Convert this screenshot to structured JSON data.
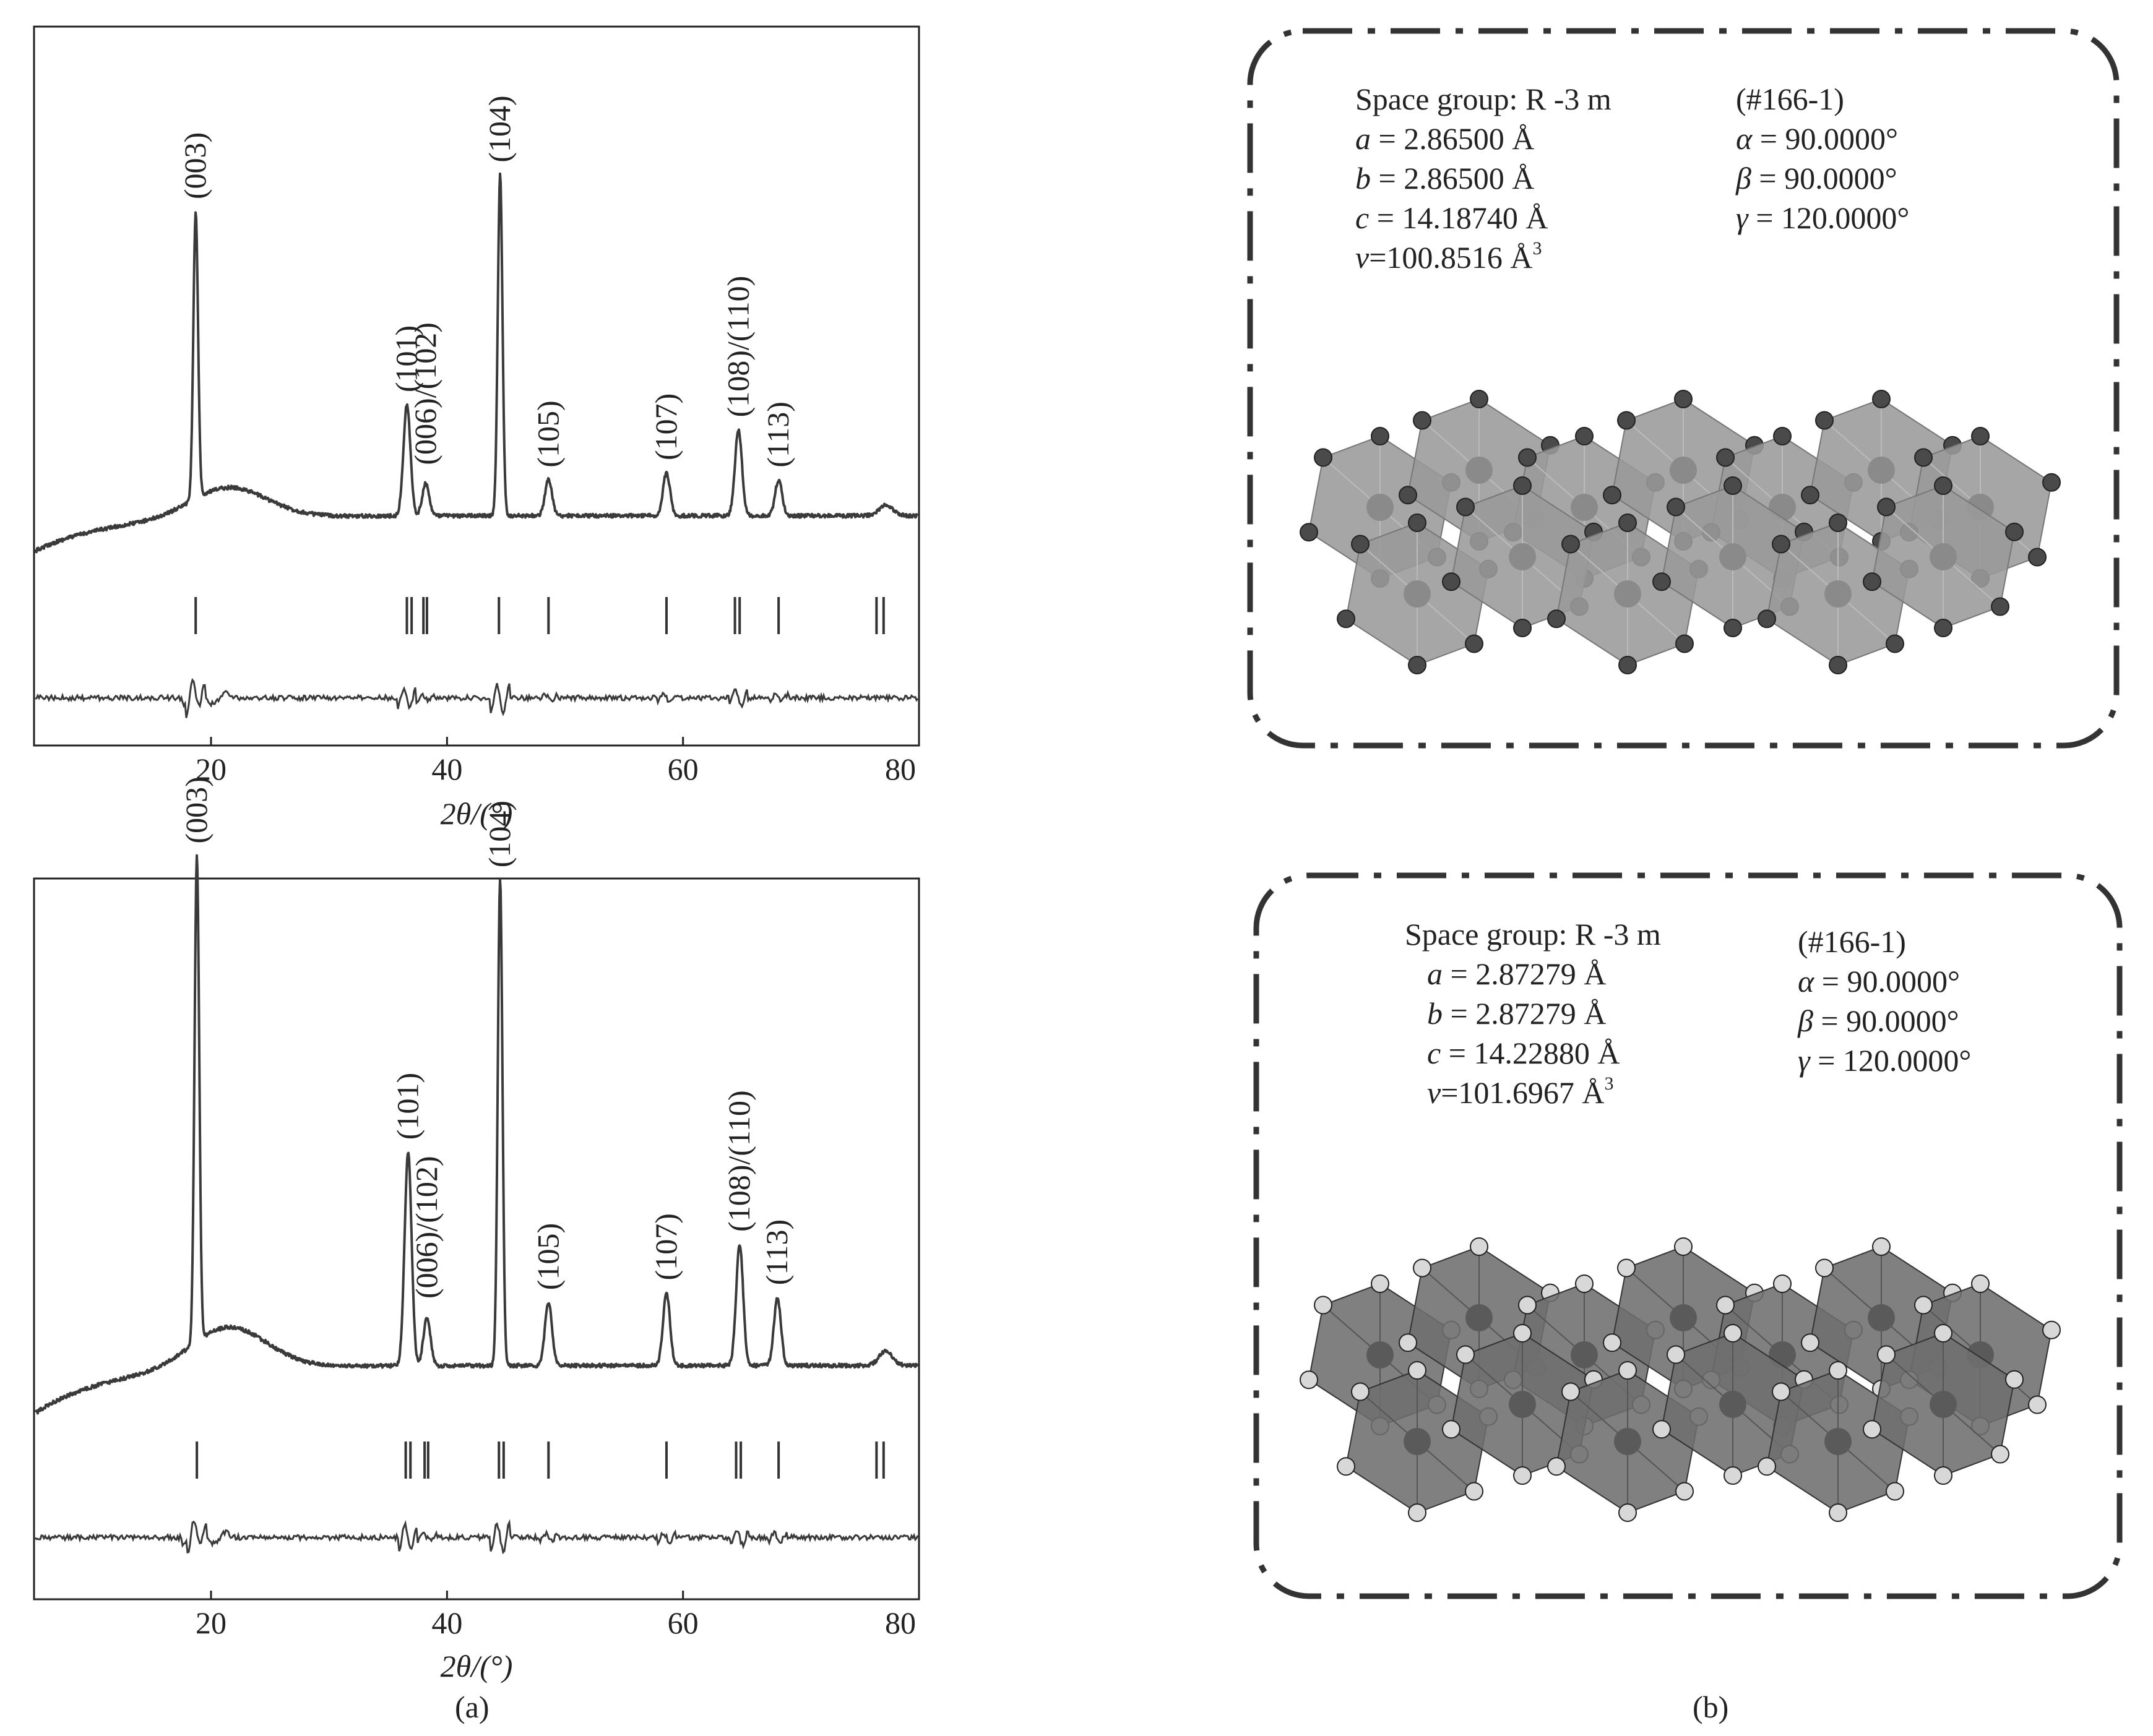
{
  "chart_data": [
    {
      "type": "line",
      "panel": "a",
      "xlabel": "2θ/(°)",
      "xlim": [
        5,
        80
      ],
      "xticks": [
        20,
        40,
        60,
        80
      ],
      "ylabel": "",
      "peaks": [
        {
          "label": "(003)",
          "x": 18.7,
          "height": 0.8
        },
        {
          "label": "(101)",
          "x": 36.6,
          "height": 0.31
        },
        {
          "label": "(006)/(102)",
          "x": 38.2,
          "height": 0.09
        },
        {
          "label": "(104)",
          "x": 44.5,
          "height": 0.95
        },
        {
          "label": "(105)",
          "x": 48.6,
          "height": 0.1
        },
        {
          "label": "(107)",
          "x": 58.6,
          "height": 0.12
        },
        {
          "label": "(108)/(110)",
          "x": 64.7,
          "height": 0.24
        },
        {
          "label": "(113)",
          "x": 68.1,
          "height": 0.1
        }
      ],
      "reference_ticks": [
        18.7,
        36.6,
        37.0,
        38.0,
        38.3,
        44.4,
        48.6,
        58.6,
        64.4,
        64.8,
        68.1,
        76.4,
        77.0
      ]
    },
    {
      "type": "line",
      "panel": "a",
      "xlabel": "2θ/(°)",
      "xlim": [
        5,
        80
      ],
      "xticks": [
        20,
        40,
        60,
        80
      ],
      "ylabel": "",
      "peaks": [
        {
          "label": "(003)",
          "x": 18.8,
          "height": 1.0
        },
        {
          "label": "(101)",
          "x": 36.7,
          "height": 0.44
        },
        {
          "label": "(006)/(102)",
          "x": 38.3,
          "height": 0.1
        },
        {
          "label": "(104)",
          "x": 44.5,
          "height": 1.0
        },
        {
          "label": "(105)",
          "x": 48.6,
          "height": 0.13
        },
        {
          "label": "(107)",
          "x": 58.6,
          "height": 0.15
        },
        {
          "label": "(108)/(110)",
          "x": 64.8,
          "height": 0.25
        },
        {
          "label": "(113)",
          "x": 68.0,
          "height": 0.14
        }
      ],
      "reference_ticks": [
        18.8,
        36.5,
        36.9,
        38.1,
        38.4,
        44.4,
        44.8,
        48.6,
        58.6,
        64.5,
        64.9,
        68.1,
        76.4,
        77.0
      ]
    }
  ],
  "panels": {
    "a_label": "(a)",
    "b_label": "(b)"
  },
  "structures": [
    {
      "space_group": "Space group: R -3 m",
      "number": "(#166-1)",
      "a_sym": "a",
      "a_val": " = 2.86500 Å",
      "b_sym": "b",
      "b_val": " = 2.86500 Å",
      "c_sym": "c",
      "c_val": " = 14.18740 Å",
      "v_sym": "v",
      "v_val": "=100.8516 Å",
      "v_exp": "3",
      "alpha_sym": "α",
      "alpha_val": " = 90.0000°",
      "beta_sym": "β",
      "beta_val": " = 90.0000°",
      "gamma_sym": "γ",
      "gamma_val": " = 120.0000°",
      "poly_color": "#9a9a9a",
      "atom_color": "#4a4a4a"
    },
    {
      "space_group": "Space group: R -3 m",
      "number": "(#166-1)",
      "a_sym": "a",
      "a_val": " = 2.87279 Å",
      "b_sym": "b",
      "b_val": " = 2.87279 Å",
      "c_sym": "c",
      "c_val": " = 14.22880 Å",
      "v_sym": "v",
      "v_val": "=101.6967 Å",
      "v_exp": "3",
      "alpha_sym": "α",
      "alpha_val": " = 90.0000°",
      "beta_sym": "β",
      "beta_val": " = 90.0000°",
      "gamma_sym": "γ",
      "gamma_val": " = 120.0000°",
      "poly_color": "#6e6e6e",
      "atom_color": "#d8d8d8"
    }
  ]
}
